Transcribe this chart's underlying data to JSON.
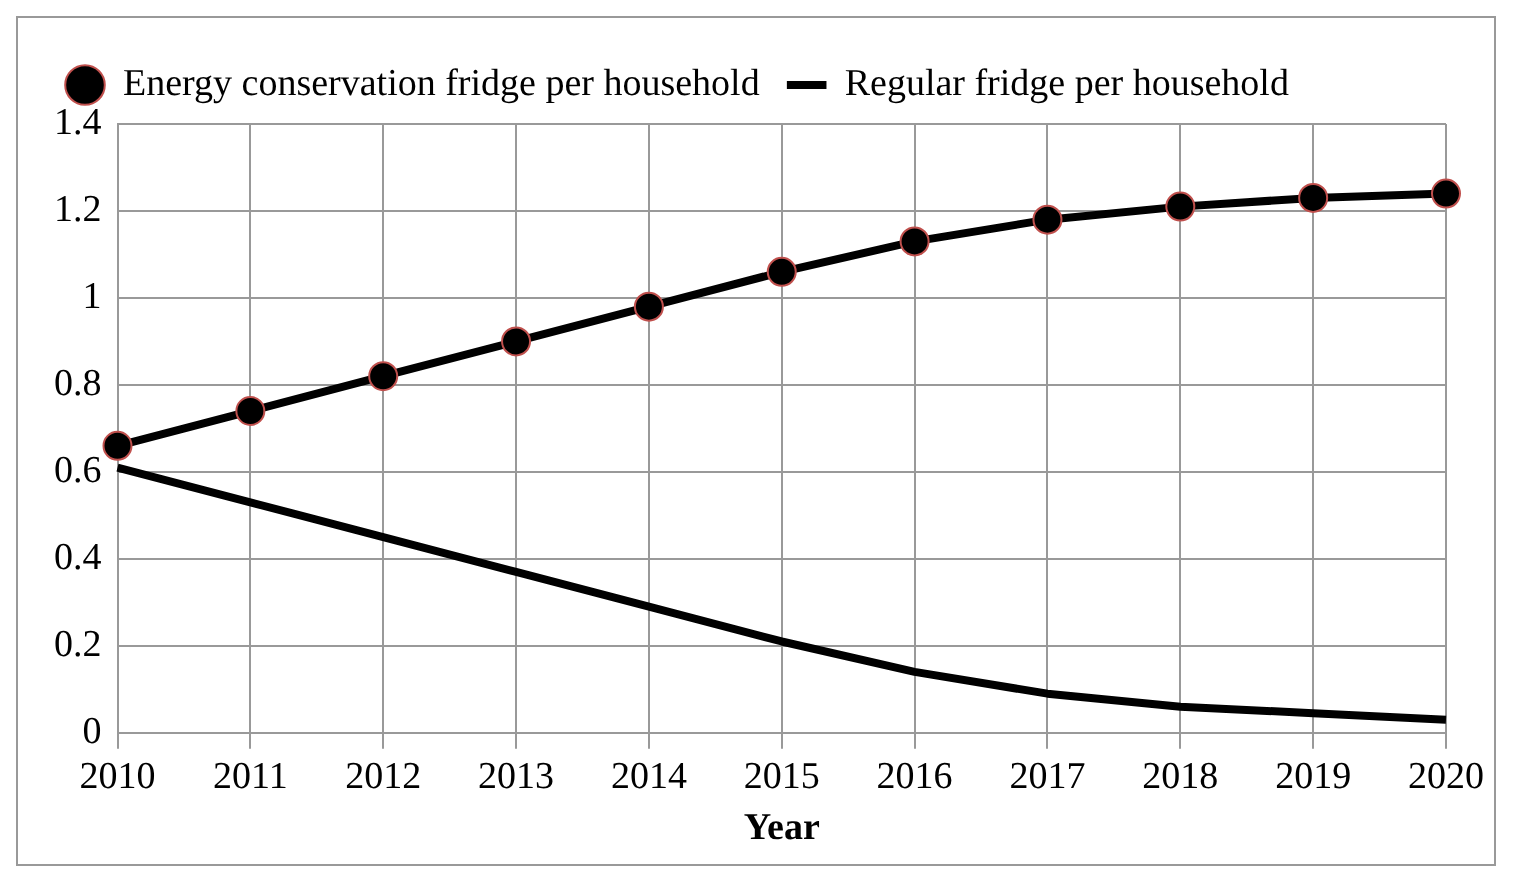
{
  "chart_data": {
    "type": "line",
    "xlabel": "Year",
    "categories": [
      "2010",
      "2011",
      "2012",
      "2013",
      "2014",
      "2015",
      "2016",
      "2017",
      "2018",
      "2019",
      "2020"
    ],
    "series": [
      {
        "name": "Energy conservation fridge per household",
        "color": "#000000",
        "marker": "circle",
        "values": [
          0.66,
          0.74,
          0.82,
          0.9,
          0.98,
          1.06,
          1.13,
          1.18,
          1.21,
          1.23,
          1.24
        ]
      },
      {
        "name": "Regular fridge per household",
        "color": "#000000",
        "marker": "none",
        "values": [
          0.61,
          0.53,
          0.45,
          0.37,
          0.29,
          0.21,
          0.14,
          0.09,
          0.06,
          0.045,
          0.03
        ]
      }
    ],
    "ylim": [
      0,
      1.4
    ],
    "yticks": [
      0,
      0.2,
      0.4,
      0.6,
      0.8,
      1,
      1.2,
      1.4
    ],
    "grid": true,
    "legend": "top",
    "line_style": "solid"
  }
}
